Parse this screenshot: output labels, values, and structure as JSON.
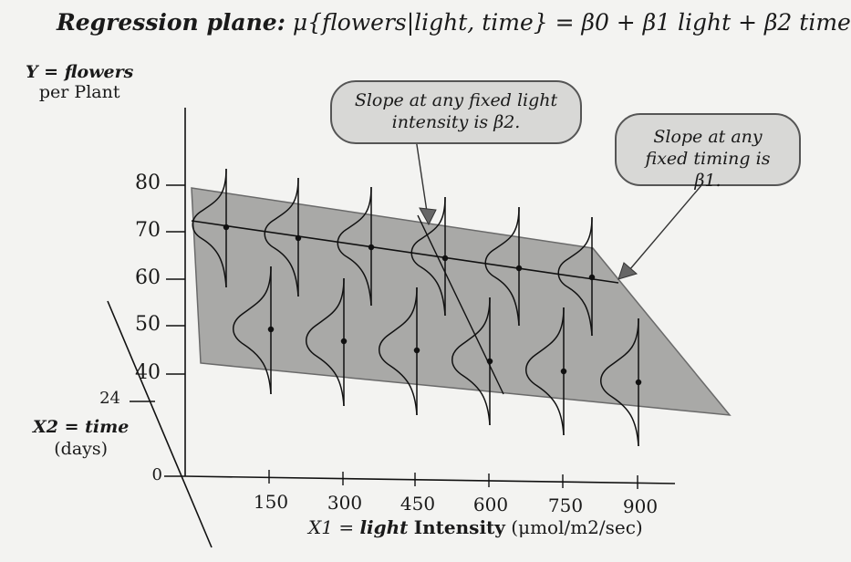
{
  "title": {
    "prefix": "Regression plane:",
    "formula": "μ{flowers|light, time} = β0 + β1 light + β2 time"
  },
  "y_axis": {
    "name": "Y = flowers",
    "unit": "per Plant",
    "ticks": [
      "80",
      "70",
      "60",
      "50",
      "40"
    ]
  },
  "x2_axis": {
    "name": "X2 = time",
    "unit": "(days)",
    "ticks": [
      "24",
      "0"
    ]
  },
  "x1_axis": {
    "name_var": "X1",
    "name_light": "light",
    "name_rest": "Intensity",
    "unit": "(μmol/m2/sec)",
    "ticks": [
      "150",
      "300",
      "450",
      "600",
      "750",
      "900"
    ]
  },
  "callouts": {
    "light_slope": "Slope at any fixed light intensity is β2.",
    "timing_slope": "Slope at any fixed timing is β1."
  },
  "colors": {
    "plane": "#a9a9a7",
    "plane_edge": "#555555",
    "curves": "#111111",
    "callout_fill": "#d8d8d6"
  }
}
